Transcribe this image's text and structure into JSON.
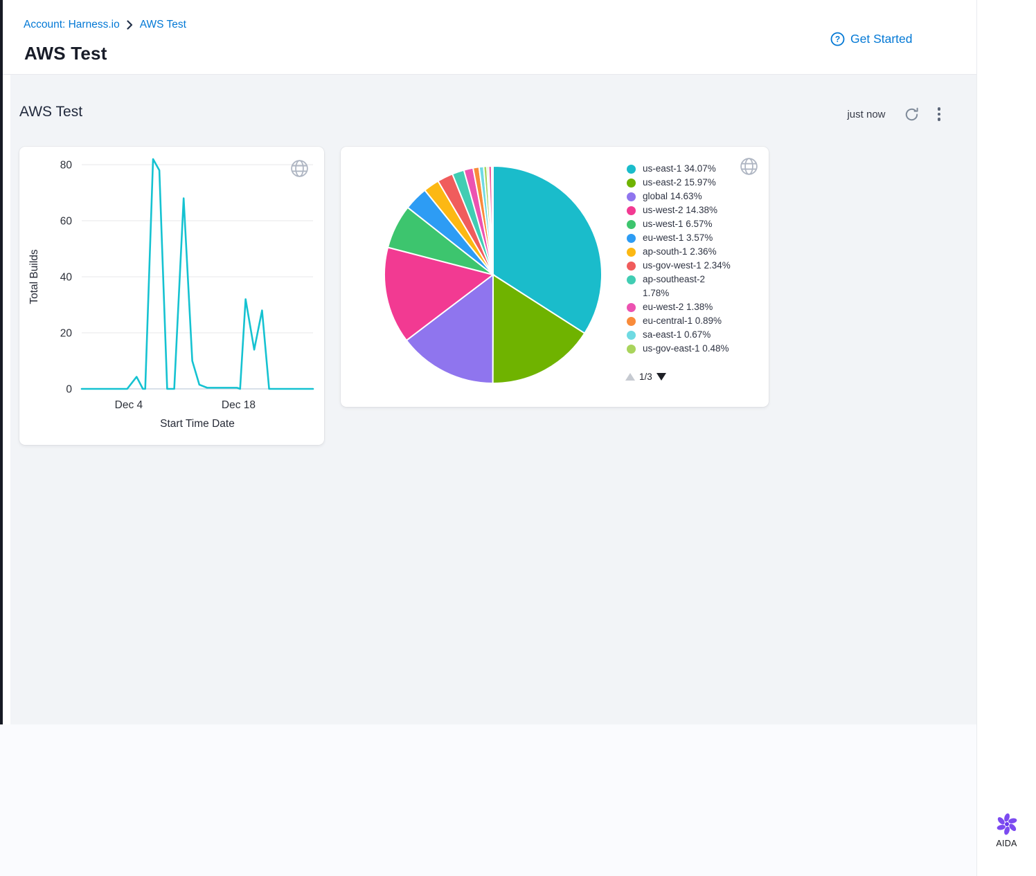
{
  "header": {
    "breadcrumb_account": "Account: Harness.io",
    "breadcrumb_page": "AWS Test",
    "title": "AWS Test",
    "get_started": "Get Started"
  },
  "toolbar": {
    "section_title": "AWS Test",
    "refreshed": "just now"
  },
  "right_rail": {
    "aida_label": "AIDA"
  },
  "chart_data": [
    {
      "type": "line",
      "title": "Total Builds over Start Time Date",
      "xlabel": "Start Time Date",
      "ylabel": "Total Builds",
      "y_ticks": [
        0,
        20,
        40,
        60,
        80
      ],
      "ylim": [
        0,
        85
      ],
      "xlim_days": [
        0,
        29.5
      ],
      "x_ticks": [
        {
          "label": "Dec 4",
          "day": 6
        },
        {
          "label": "Dec 18",
          "day": 20
        }
      ],
      "line_color": "#15c2d1",
      "grid_color": "#e7e7e9",
      "axis_color": "#ccd6e2",
      "points": [
        [
          0,
          0
        ],
        [
          5.8,
          0
        ],
        [
          7,
          4.3
        ],
        [
          7.8,
          0
        ],
        [
          8.1,
          0
        ],
        [
          9.1,
          82
        ],
        [
          9.9,
          78
        ],
        [
          10.9,
          0
        ],
        [
          11.8,
          0
        ],
        [
          13,
          68
        ],
        [
          14.1,
          10
        ],
        [
          15,
          1.5
        ],
        [
          16,
          0.4
        ],
        [
          19.8,
          0.4
        ],
        [
          20.2,
          0
        ],
        [
          20.9,
          32
        ],
        [
          22,
          14
        ],
        [
          23,
          28
        ],
        [
          23.9,
          0
        ],
        [
          29.5,
          0
        ]
      ]
    },
    {
      "type": "pie",
      "legend_page": "1/3",
      "slices": [
        {
          "label": "us-east-1",
          "pct": 34.07,
          "pct_label": "34.07%",
          "color": "#1abccb"
        },
        {
          "label": "us-east-2",
          "pct": 15.97,
          "pct_label": "15.97%",
          "color": "#6fb300"
        },
        {
          "label": "global",
          "pct": 14.63,
          "pct_label": "14.63%",
          "color": "#8f75ee"
        },
        {
          "label": "us-west-2",
          "pct": 14.38,
          "pct_label": "14.38%",
          "color": "#f23a92"
        },
        {
          "label": "us-west-1",
          "pct": 6.57,
          "pct_label": "6.57%",
          "color": "#3dc56e"
        },
        {
          "label": "eu-west-1",
          "pct": 3.57,
          "pct_label": "3.57%",
          "color": "#2d9cf4"
        },
        {
          "label": "ap-south-1",
          "pct": 2.36,
          "pct_label": "2.36%",
          "color": "#fcb813"
        },
        {
          "label": "us-gov-west-1",
          "pct": 2.34,
          "pct_label": "2.34%",
          "color": "#f05c5c"
        },
        {
          "label": "ap-southeast-2",
          "pct": 1.78,
          "pct_label": "1.78%",
          "color": "#41cdb3"
        },
        {
          "label": "eu-west-2",
          "pct": 1.38,
          "pct_label": "1.38%",
          "color": "#ec52b1"
        },
        {
          "label": "eu-central-1",
          "pct": 0.89,
          "pct_label": "0.89%",
          "color": "#f98b3a"
        },
        {
          "label": "sa-east-1",
          "pct": 0.67,
          "pct_label": "0.67%",
          "color": "#6fdae2"
        },
        {
          "label": "us-gov-east-1",
          "pct": 0.48,
          "pct_label": "0.48%",
          "color": "#a9d45c"
        }
      ],
      "unlabeled_remainder": [
        {
          "pct": 0.25,
          "color": "#9fd95f"
        },
        {
          "pct": 0.45,
          "color": "#f25a9e"
        },
        {
          "pct": 0.21,
          "color": "#e3f2f5"
        }
      ]
    }
  ]
}
